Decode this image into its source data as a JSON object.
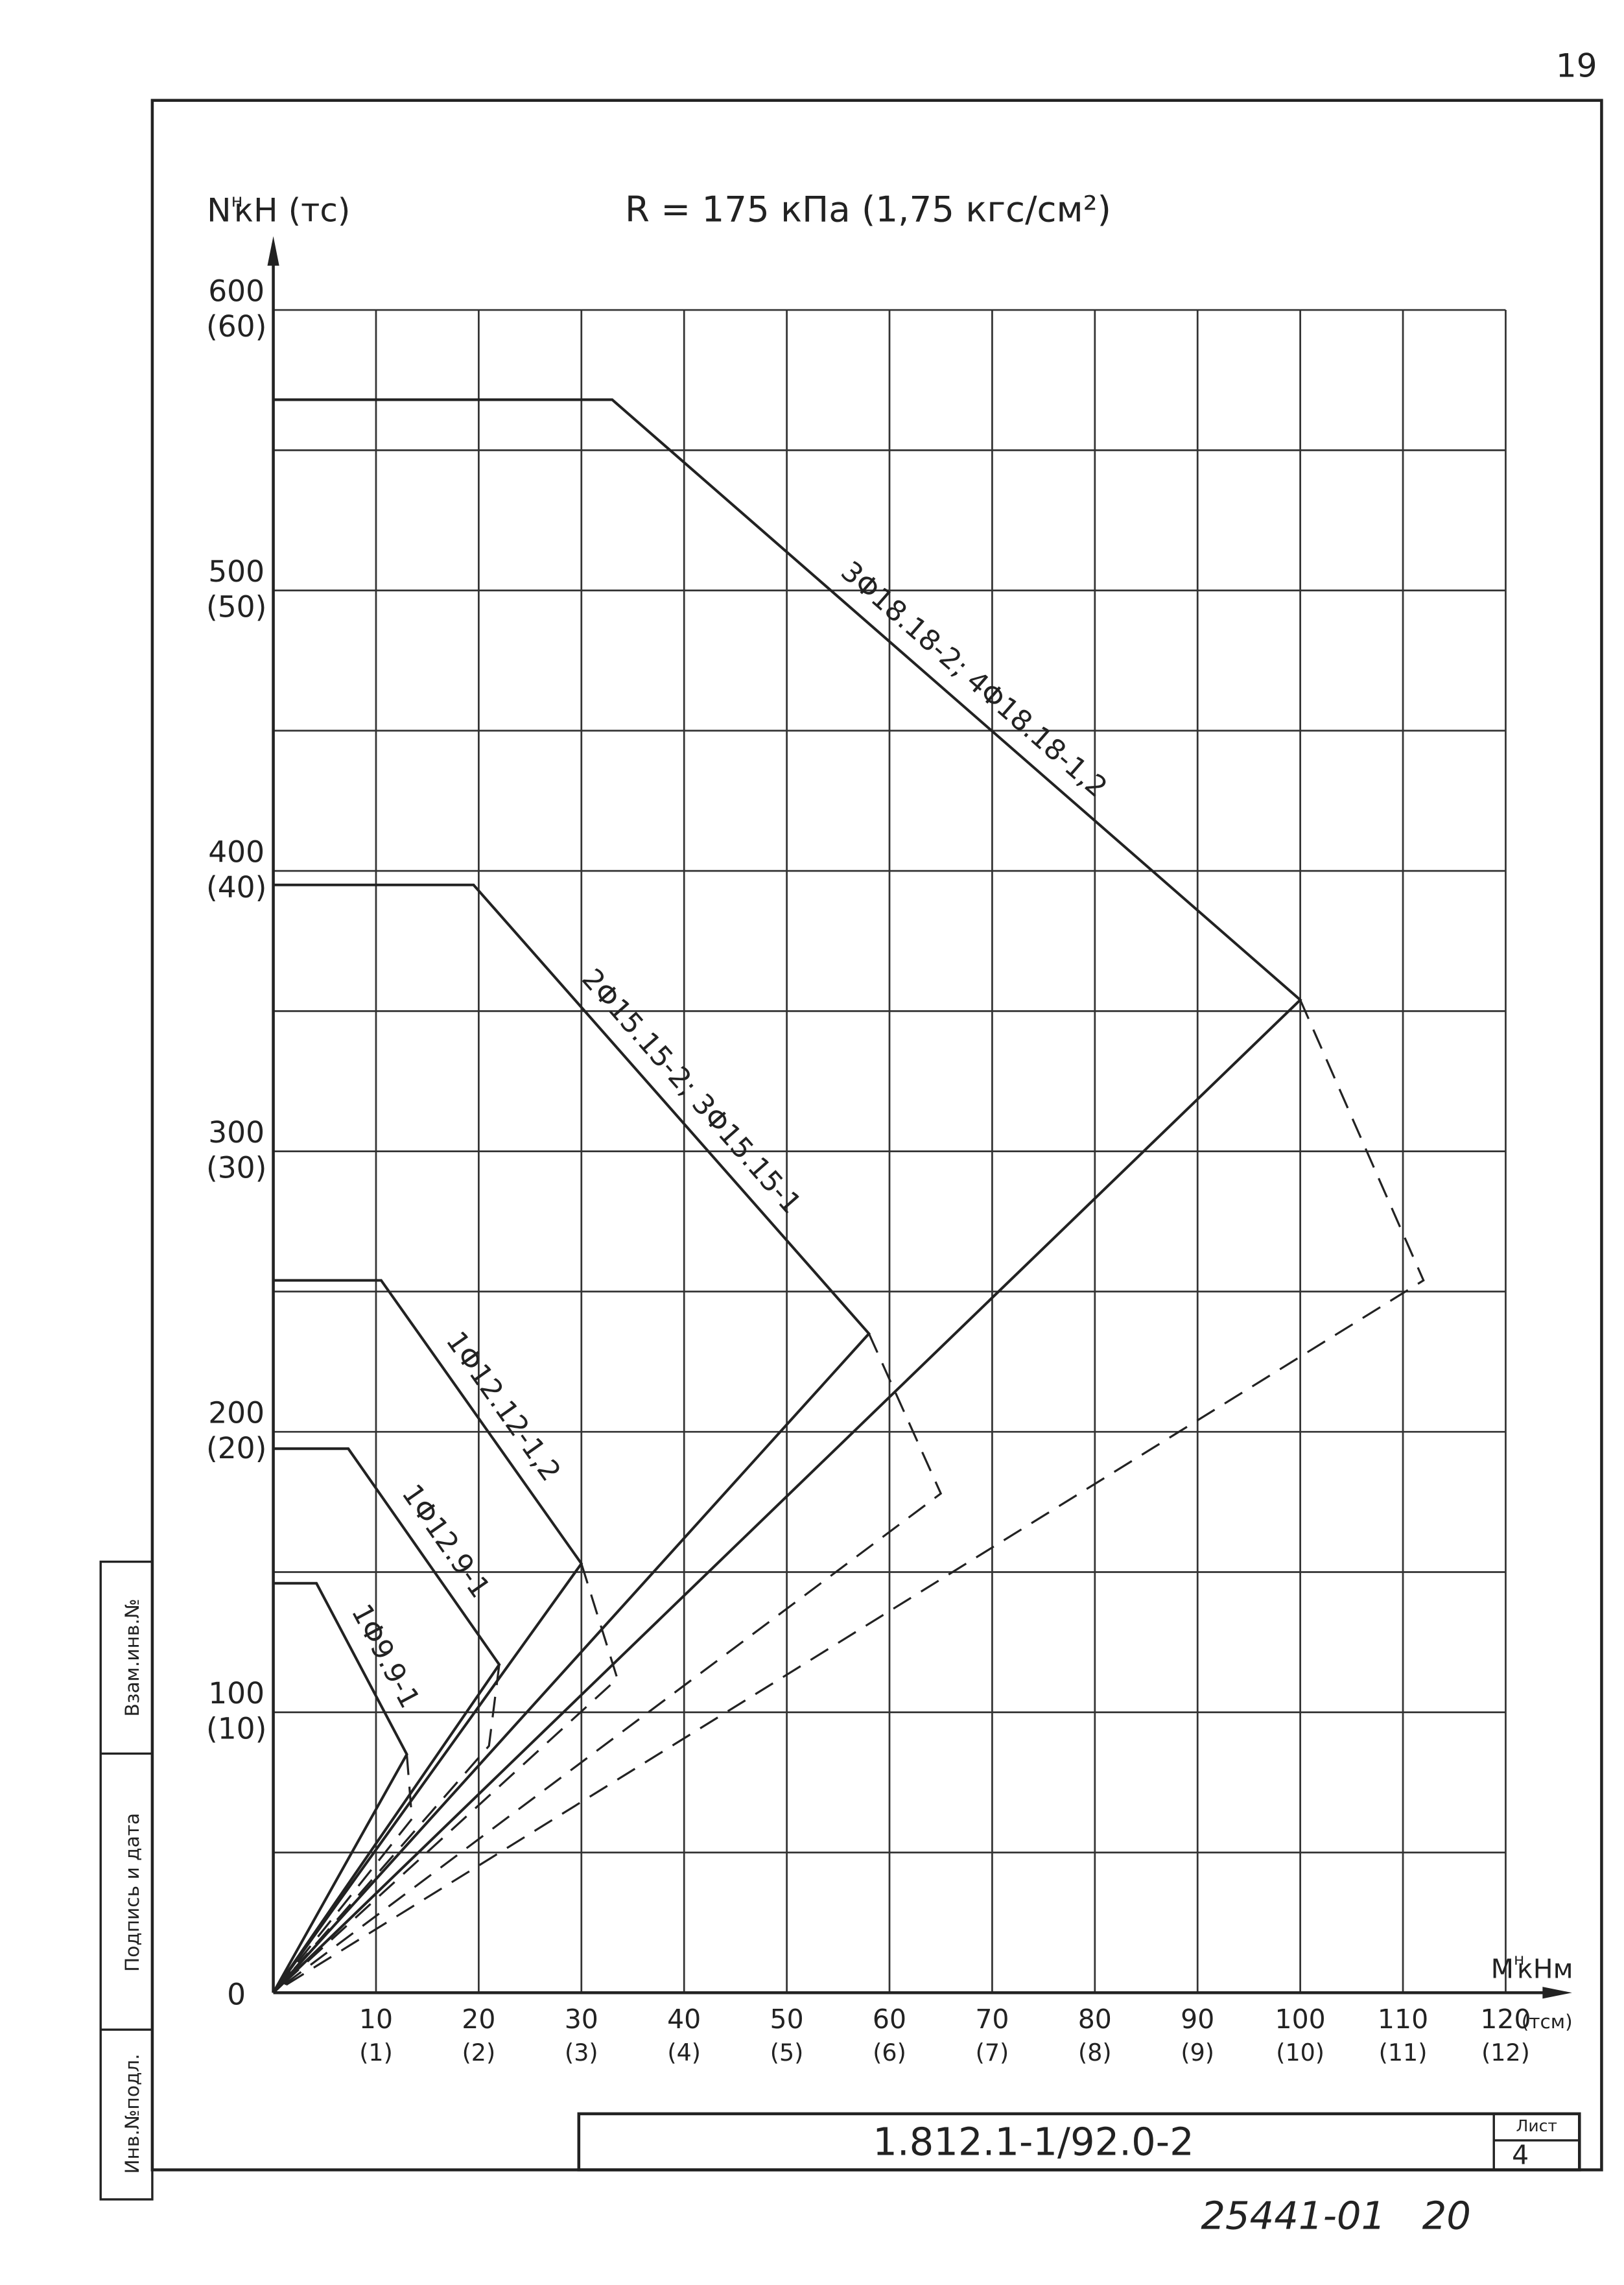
{
  "page_number": "19",
  "chart_data": {
    "type": "line",
    "title": "R = 175 кПа (1,75 кгс/см²)",
    "ylabel": {
      "symbol": "N",
      "sup": "н",
      "unit": "кН (тс)"
    },
    "xlabel": {
      "symbol": "M",
      "sup": "н",
      "unit": "кНм",
      "alt_unit": "(тсм)"
    },
    "xlim": [
      0,
      120
    ],
    "ylim": [
      0,
      600
    ],
    "xticks": [
      10,
      20,
      30,
      40,
      50,
      60,
      70,
      80,
      90,
      100,
      110,
      120
    ],
    "xtick_sublabels": [
      "(1)",
      "(2)",
      "(3)",
      "(4)",
      "(5)",
      "(6)",
      "(7)",
      "(8)",
      "(9)",
      "(10)",
      "(11)",
      "(12)"
    ],
    "yticks": [
      0,
      100,
      200,
      300,
      400,
      500,
      600
    ],
    "ytick_sublabels": [
      null,
      "(10)",
      "(20)",
      "(30)",
      "(40)",
      "(50)",
      "(60)"
    ],
    "ygrid": [
      0,
      50,
      100,
      150,
      200,
      250,
      300,
      350,
      400,
      450,
      500,
      550,
      600
    ],
    "grid": true,
    "series": [
      {
        "name": "3Φ18.18-2; 4Φ18.18-1,2",
        "color": "#222",
        "x": [
          0,
          100,
          33,
          0
        ],
        "values": [
          0,
          354,
          568,
          568
        ],
        "dashed": {
          "x": [
            100,
            112,
            0
          ],
          "values": [
            354,
            254,
            0
          ]
        }
      },
      {
        "name": "2Φ15.15-2; 3Φ15.15-1",
        "color": "#222",
        "x": [
          0,
          58,
          19.5,
          0
        ],
        "values": [
          0,
          235,
          395,
          395
        ],
        "dashed": {
          "x": [
            58,
            65,
            0
          ],
          "values": [
            235,
            178,
            0
          ]
        }
      },
      {
        "name": "1Φ12.12-1,2",
        "color": "#222",
        "x": [
          0,
          30,
          10.5,
          0
        ],
        "values": [
          0,
          153,
          254,
          254
        ],
        "dashed": {
          "x": [
            30,
            33.5,
            0
          ],
          "values": [
            153,
            112,
            0
          ]
        }
      },
      {
        "name": "1Φ12.9-1",
        "color": "#222",
        "x": [
          0,
          22,
          7.3,
          0
        ],
        "values": [
          0,
          117,
          194,
          194
        ],
        "dashed": {
          "x": [
            22,
            21,
            0
          ],
          "values": [
            117,
            88,
            0
          ]
        }
      },
      {
        "name": "1Φ9.9-1",
        "color": "#222",
        "x": [
          0,
          13,
          4.2,
          0
        ],
        "values": [
          0,
          85,
          146,
          146
        ],
        "dashed": {
          "x": [
            13,
            13.5,
            0
          ],
          "values": [
            85,
            62,
            0
          ]
        }
      }
    ]
  },
  "stamps": [
    "Взам.инв.№",
    "Подпись и дата",
    "Инв.№подл."
  ],
  "title_block": {
    "code": "1.812.1-1/92.0-2",
    "sheet_label": "Лист",
    "sheet": "4"
  },
  "footer": "25441-01   20"
}
